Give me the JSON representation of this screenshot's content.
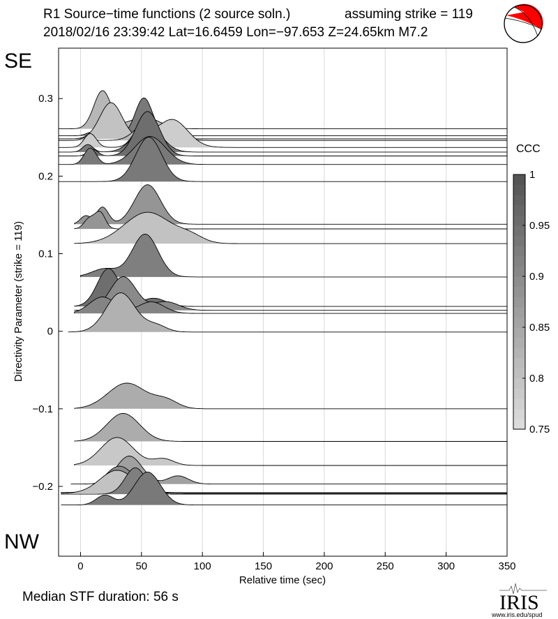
{
  "header": {
    "title": "R1 Source−time functions (2 source soln.)",
    "strike_note": "assuming strike = 119",
    "event_info": "2018/02/16 23:39:42  Lat=16.6459 Lon=−97.653  Z=24.65km  M7.2"
  },
  "direction_labels": {
    "top": "SE",
    "bottom": "NW"
  },
  "footer": {
    "median_label": "Median STF duration: 56 s",
    "logo_text": "IRIS",
    "logo_url": "www.iris.edu/spud"
  },
  "colors": {
    "beachball_compression": "#ff0000",
    "beachball_dilatation": "#ffffff",
    "grid": "#d9d9d9"
  },
  "chart_data": {
    "type": "area",
    "title": "R1 Source−time functions (2 source soln.)",
    "xlabel": "Relative time (sec)",
    "ylabel": "Directivity Parameter (strike = 119)",
    "xlim": [
      -18,
      350
    ],
    "ylim": [
      -0.29,
      0.365
    ],
    "xticks": [
      0,
      50,
      100,
      150,
      200,
      250,
      300,
      350
    ],
    "yticks": [
      -0.2,
      -0.1,
      0,
      0.1,
      0.2,
      0.3
    ],
    "ytick_labels": [
      "−0.2",
      "−0.1",
      "0",
      "0.1",
      "0.2",
      "0.3"
    ],
    "grid_x": true,
    "amplitude_scale_per_unit": 4.25e-05,
    "colorbar": {
      "label": "CCC",
      "min": 0.75,
      "max": 1.0,
      "ticks": [
        0.75,
        0.8,
        0.85,
        0.9,
        0.95,
        1
      ],
      "tick_labels": [
        "0.75",
        "0.8",
        "0.85",
        "0.9",
        "0.95",
        "1"
      ]
    },
    "series": [
      {
        "name": "stf-01",
        "baseline": 0.261,
        "start": -18,
        "ccc": 0.82,
        "peaks": [
          {
            "t": 18,
            "amp": 1150,
            "w": 10
          },
          {
            "t": 52,
            "amp": 350,
            "w": 18
          }
        ]
      },
      {
        "name": "stf-02",
        "baseline": 0.252,
        "start": -18,
        "ccc": 0.93,
        "peaks": [
          {
            "t": 10,
            "amp": 120,
            "w": 7
          },
          {
            "t": 52,
            "amp": 1150,
            "w": 10
          }
        ]
      },
      {
        "name": "stf-03",
        "baseline": 0.248,
        "start": -18,
        "ccc": 0.8,
        "peaks": [
          {
            "t": 25,
            "amp": 1100,
            "w": 13
          }
        ]
      },
      {
        "name": "stf-04",
        "baseline": 0.246,
        "start": -18,
        "ccc": 0.82,
        "peaks": [
          {
            "t": 5,
            "amp": 90,
            "w": 6
          },
          {
            "t": 55,
            "amp": 550,
            "w": 14
          },
          {
            "t": 80,
            "amp": 170,
            "w": 10
          }
        ]
      },
      {
        "name": "stf-05",
        "baseline": 0.237,
        "start": -18,
        "ccc": 0.78,
        "peaks": [
          {
            "t": 8,
            "amp": 420,
            "w": 7
          },
          {
            "t": 50,
            "amp": 560,
            "w": 10
          },
          {
            "t": 75,
            "amp": 850,
            "w": 18
          }
        ]
      },
      {
        "name": "stf-06",
        "baseline": 0.231,
        "start": -18,
        "ccc": 0.93,
        "peaks": [
          {
            "t": 6,
            "amp": 230,
            "w": 6
          },
          {
            "t": 55,
            "amp": 800,
            "w": 16
          }
        ]
      },
      {
        "name": "stf-07",
        "baseline": 0.226,
        "start": -18,
        "ccc": 0.95,
        "peaks": [
          {
            "t": 10,
            "amp": 200,
            "w": 6
          },
          {
            "t": 55,
            "amp": 1350,
            "w": 14
          }
        ]
      },
      {
        "name": "stf-08",
        "baseline": 0.215,
        "start": -18,
        "ccc": 0.93,
        "peaks": [
          {
            "t": 8,
            "amp": 500,
            "w": 7
          },
          {
            "t": 57,
            "amp": 850,
            "w": 18
          }
        ]
      },
      {
        "name": "stf-09",
        "baseline": 0.193,
        "start": -18,
        "ccc": 0.93,
        "peaks": [
          {
            "t": 56,
            "amp": 1350,
            "w": 15
          }
        ]
      },
      {
        "name": "stf-10",
        "baseline": 0.138,
        "start": -5,
        "ccc": 0.88,
        "peaks": [
          {
            "t": 4,
            "amp": 250,
            "w": 6
          },
          {
            "t": 18,
            "amp": 520,
            "w": 7
          },
          {
            "t": 55,
            "amp": 1200,
            "w": 15
          }
        ]
      },
      {
        "name": "stf-11",
        "baseline": 0.132,
        "start": -5,
        "ccc": 0.88,
        "peaks": [
          {
            "t": 7,
            "amp": 300,
            "w": 6
          },
          {
            "t": 16,
            "amp": 500,
            "w": 6
          }
        ]
      },
      {
        "name": "stf-12",
        "baseline": 0.113,
        "start": -5,
        "ccc": 0.8,
        "peaks": [
          {
            "t": 55,
            "amp": 950,
            "w": 27
          },
          {
            "t": 90,
            "amp": 200,
            "w": 15
          }
        ]
      },
      {
        "name": "stf-13",
        "baseline": 0.07,
        "start": 0,
        "ccc": 0.92,
        "peaks": [
          {
            "t": 20,
            "amp": 250,
            "w": 15
          },
          {
            "t": 53,
            "amp": 1300,
            "w": 15
          }
        ]
      },
      {
        "name": "stf-14",
        "baseline": 0.032,
        "start": -5,
        "ccc": 0.95,
        "peaks": [
          {
            "t": 23,
            "amp": 1150,
            "w": 13
          },
          {
            "t": 60,
            "amp": 250,
            "w": 14
          }
        ]
      },
      {
        "name": "stf-15",
        "baseline": 0.027,
        "start": -5,
        "ccc": 0.9,
        "peaks": [
          {
            "t": 35,
            "amp": 1020,
            "w": 15
          },
          {
            "t": 70,
            "amp": 260,
            "w": 15
          }
        ]
      },
      {
        "name": "stf-16",
        "baseline": 0.023,
        "start": -5,
        "ccc": 0.91,
        "peaks": [
          {
            "t": 18,
            "amp": 500,
            "w": 15
          },
          {
            "t": 58,
            "amp": 350,
            "w": 15
          }
        ]
      },
      {
        "name": "stf-17",
        "baseline": -0.001,
        "start": -10,
        "ccc": 0.83,
        "peaks": [
          {
            "t": 33,
            "amp": 1190,
            "w": 17
          },
          {
            "t": 62,
            "amp": 200,
            "w": 12
          }
        ]
      },
      {
        "name": "stf-18",
        "baseline": -0.1,
        "start": -5,
        "ccc": 0.84,
        "peaks": [
          {
            "t": 38,
            "amp": 780,
            "w": 22
          },
          {
            "t": 70,
            "amp": 250,
            "w": 14
          }
        ]
      },
      {
        "name": "stf-19",
        "baseline": -0.142,
        "start": -5,
        "ccc": 0.84,
        "peaks": [
          {
            "t": 35,
            "amp": 850,
            "w": 19
          }
        ]
      },
      {
        "name": "stf-20",
        "baseline": -0.173,
        "start": -5,
        "ccc": 0.79,
        "peaks": [
          {
            "t": 30,
            "amp": 850,
            "w": 19
          },
          {
            "t": 68,
            "amp": 200,
            "w": 12
          }
        ]
      },
      {
        "name": "stf-21",
        "baseline": -0.197,
        "start": -8,
        "ccc": 0.86,
        "peaks": [
          {
            "t": 40,
            "amp": 850,
            "w": 15
          },
          {
            "t": 80,
            "amp": 250,
            "w": 12
          }
        ]
      },
      {
        "name": "stf-22",
        "baseline": -0.208,
        "start": -16,
        "ccc": 0.9,
        "peaks": [
          {
            "t": 32,
            "amp": 800,
            "w": 18
          }
        ]
      },
      {
        "name": "stf-23",
        "baseline": -0.209,
        "start": -16,
        "ccc": 0.8,
        "peaks": [
          {
            "t": 30,
            "amp": 700,
            "w": 20
          }
        ]
      },
      {
        "name": "stf-24",
        "baseline": -0.21,
        "start": -16,
        "ccc": 0.92,
        "peaks": [
          {
            "t": 45,
            "amp": 800,
            "w": 12
          }
        ]
      },
      {
        "name": "stf-25",
        "baseline": -0.224,
        "start": -16,
        "ccc": 0.93,
        "peaks": [
          {
            "t": 20,
            "amp": 300,
            "w": 10
          },
          {
            "t": 55,
            "amp": 1000,
            "w": 15
          }
        ]
      }
    ]
  }
}
